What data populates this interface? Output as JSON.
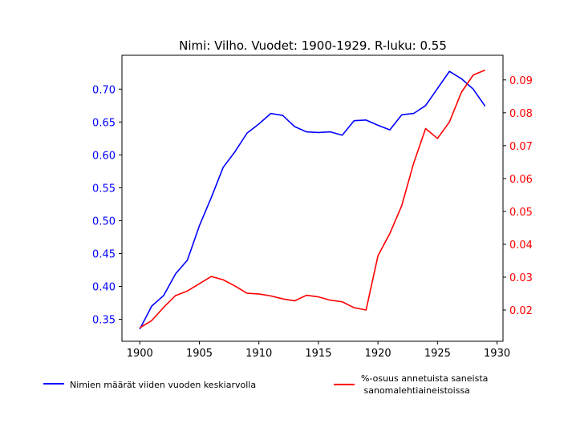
{
  "chart_data": {
    "type": "line",
    "title": "Nimi: Vilho. Vuodet: 1900-1929. R-luku: 0.55",
    "xlabel": "",
    "ylabel_left": "",
    "ylabel_right": "",
    "xlim": [
      1898.5,
      1930.5
    ],
    "ylim_left": [
      0.3165,
      0.7515
    ],
    "ylim_right": [
      0.0105,
      0.0975
    ],
    "x_ticks": [
      1900,
      1905,
      1910,
      1915,
      1920,
      1925,
      1930
    ],
    "y_ticks_left": [
      "0.35",
      "0.40",
      "0.45",
      "0.50",
      "0.55",
      "0.60",
      "0.65",
      "0.70"
    ],
    "y_ticks_right": [
      "0.02",
      "0.03",
      "0.04",
      "0.05",
      "0.06",
      "0.07",
      "0.08",
      "0.09"
    ],
    "legend_position": "bottom",
    "grid": false,
    "x": [
      1900,
      1901,
      1902,
      1903,
      1904,
      1905,
      1906,
      1907,
      1908,
      1909,
      1910,
      1911,
      1912,
      1913,
      1914,
      1915,
      1916,
      1917,
      1918,
      1919,
      1920,
      1921,
      1922,
      1923,
      1924,
      1925,
      1926,
      1927,
      1928,
      1929
    ],
    "series": [
      {
        "name": "Nimien määrät viiden vuoden keskiarvolla",
        "axis": "left",
        "color": "#0000ff",
        "values": [
          0.335,
          0.37,
          0.386,
          0.419,
          0.44,
          0.492,
          0.535,
          0.581,
          0.605,
          0.633,
          0.647,
          0.663,
          0.66,
          0.643,
          0.635,
          0.634,
          0.635,
          0.63,
          0.652,
          0.653,
          0.645,
          0.638,
          0.661,
          0.663,
          0.675,
          0.701,
          0.727,
          0.716,
          0.7,
          0.674
        ]
      },
      {
        "name": "%-osuus annetuista saneista\n sanomalehtiaineistoissa",
        "axis": "right",
        "color": "#ff0000",
        "values": [
          0.0146,
          0.0168,
          0.0208,
          0.0244,
          0.0258,
          0.028,
          0.0302,
          0.0292,
          0.0273,
          0.0251,
          0.0249,
          0.0243,
          0.0234,
          0.0228,
          0.0245,
          0.024,
          0.023,
          0.0225,
          0.0207,
          0.02,
          0.0365,
          0.0433,
          0.0518,
          0.0647,
          0.0752,
          0.0722,
          0.0772,
          0.0862,
          0.0915,
          0.093
        ]
      }
    ]
  }
}
